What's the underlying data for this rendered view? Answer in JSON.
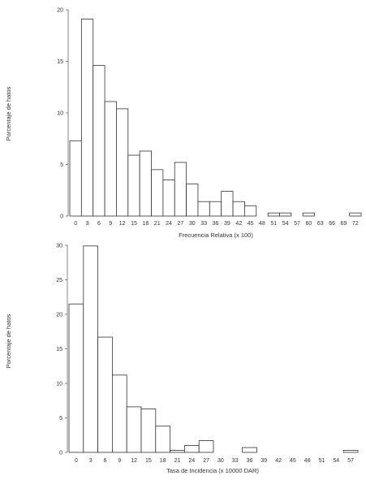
{
  "chart_data": [
    {
      "type": "bar",
      "xlabel": "Frecuencia Relativa (x 100)",
      "ylabel": "Porcentaje de hatos",
      "ylim": [
        0,
        20
      ],
      "yticks": [
        "0",
        "5",
        "10",
        "15",
        "20"
      ],
      "categories": [
        "0",
        "3",
        "6",
        "9",
        "12",
        "15",
        "18",
        "21",
        "24",
        "27",
        "30",
        "33",
        "36",
        "39",
        "42",
        "45",
        "48",
        "51",
        "54",
        "57",
        "60",
        "63",
        "66",
        "69",
        "72"
      ],
      "values": [
        7.3,
        19.1,
        14.6,
        11.1,
        10.4,
        5.9,
        6.3,
        4.5,
        3.5,
        5.2,
        3.1,
        1.4,
        1.4,
        2.4,
        1.4,
        1.0,
        0,
        0.3,
        0.3,
        0,
        0.3,
        0,
        0,
        0,
        0.3
      ],
      "grid": false
    },
    {
      "type": "bar",
      "xlabel": "Tasa de Incidencia (x 10000 DAR)",
      "ylabel": "Porcentaje de hatos",
      "ylim": [
        0,
        30
      ],
      "yticks": [
        "0",
        "5",
        "10",
        "15",
        "20",
        "25",
        "30"
      ],
      "categories": [
        "0",
        "3",
        "6",
        "9",
        "12",
        "15",
        "18",
        "21",
        "24",
        "27",
        "30",
        "33",
        "36",
        "39",
        "42",
        "45",
        "48",
        "51",
        "54",
        "57"
      ],
      "values": [
        21.5,
        29.9,
        16.7,
        11.2,
        6.6,
        6.3,
        3.8,
        0.3,
        1.0,
        1.7,
        0,
        0,
        0.7,
        0,
        0,
        0,
        0,
        0,
        0,
        0.3
      ],
      "grid": false
    }
  ]
}
